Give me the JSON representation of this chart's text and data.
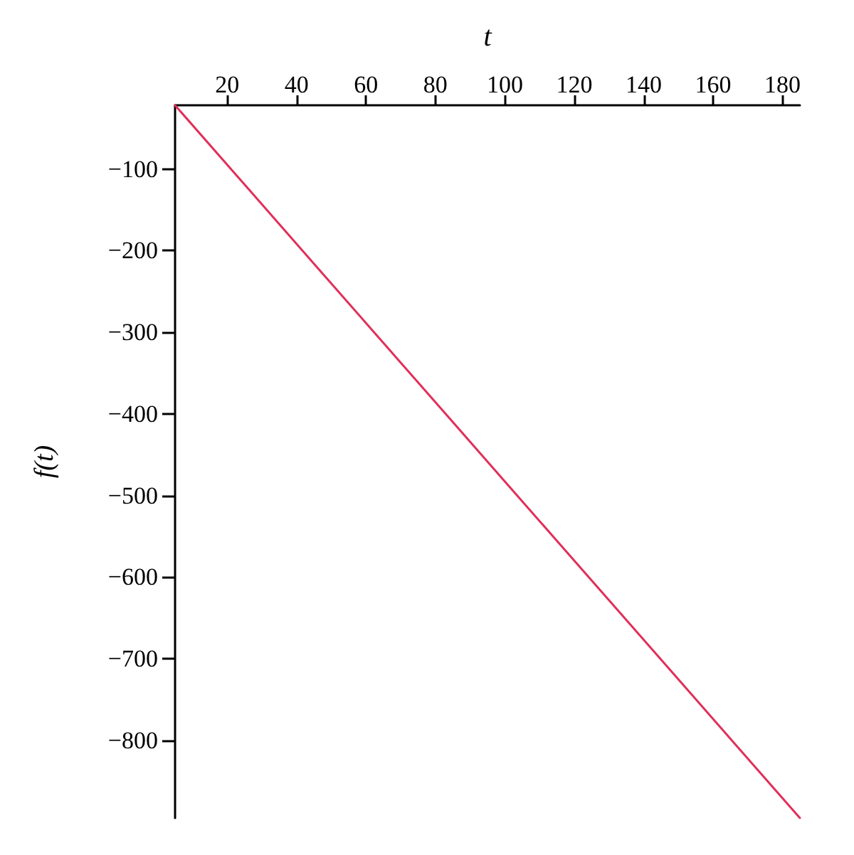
{
  "chart_data": {
    "type": "line",
    "xlabel": "t",
    "ylabel": "f(t)",
    "x": [
      5,
      25,
      45,
      65,
      85,
      105,
      125,
      145,
      165,
      185
    ],
    "series": [
      {
        "color": "#e0305a",
        "values": [
          -22,
          -119,
          -216,
          -313,
          -410,
          -507,
          -604,
          -701,
          -798,
          -895
        ]
      }
    ],
    "xlim": [
      5,
      185
    ],
    "xticks": [
      20,
      40,
      60,
      80,
      100,
      120,
      140,
      160,
      180
    ],
    "ylim": [
      -895,
      -22
    ],
    "yticks": [
      -100,
      -200,
      -300,
      -400,
      -500,
      -600,
      -700,
      -800
    ],
    "marker": "none",
    "line_style": "solid"
  }
}
